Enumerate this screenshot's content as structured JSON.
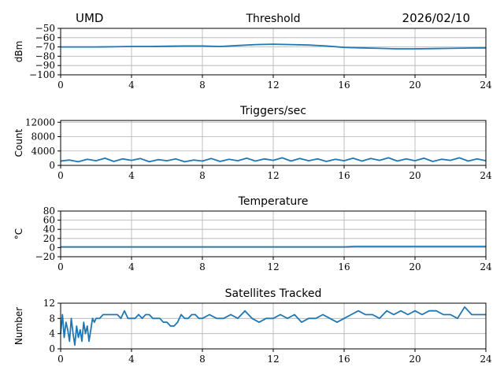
{
  "header": {
    "station": "UMD",
    "date": "2026/02/10"
  },
  "colors": {
    "series": "#1f77b4",
    "grid": "#b0b0b0",
    "axis": "#000000"
  },
  "chart_data": [
    {
      "id": "threshold",
      "type": "line",
      "title": "Threshold",
      "xlabel": "",
      "ylabel": "dBm",
      "xlim": [
        0,
        24
      ],
      "ylim": [
        -100,
        -50
      ],
      "xticks": [
        0,
        4,
        8,
        12,
        16,
        20,
        24
      ],
      "yticks": [
        -100,
        -90,
        -80,
        -70,
        -60,
        -50
      ],
      "ytick_labels": [
        "−100",
        "−90",
        "−80",
        "−70",
        "−60",
        "−50"
      ],
      "grid": true,
      "series": [
        {
          "x": [
            0,
            1,
            2,
            3,
            4,
            5,
            6,
            7,
            8,
            9,
            10,
            11,
            12,
            13,
            14,
            15,
            16,
            17,
            18,
            19,
            20,
            21,
            22,
            23,
            24
          ],
          "values": [
            -70,
            -70,
            -70,
            -69.8,
            -69.5,
            -69.5,
            -69.2,
            -69,
            -69,
            -69.5,
            -68.5,
            -67.5,
            -67,
            -67.5,
            -68,
            -69,
            -70.5,
            -71,
            -71.5,
            -72,
            -72,
            -71.8,
            -71.5,
            -71.2,
            -71
          ]
        }
      ]
    },
    {
      "id": "triggers",
      "type": "line",
      "title": "Triggers/sec",
      "xlabel": "",
      "ylabel": "Count",
      "xlim": [
        0,
        24
      ],
      "ylim": [
        0,
        12500
      ],
      "xticks": [
        0,
        4,
        8,
        12,
        16,
        20,
        24
      ],
      "yticks": [
        0,
        4000,
        8000,
        12000
      ],
      "ytick_labels": [
        "0",
        "4000",
        "8000",
        "12000"
      ],
      "grid": true,
      "series": [
        {
          "x": [
            0,
            0.5,
            1,
            1.5,
            2,
            2.5,
            3,
            3.5,
            4,
            4.5,
            5,
            5.5,
            6,
            6.5,
            7,
            7.5,
            8,
            8.5,
            9,
            9.5,
            10,
            10.5,
            11,
            11.5,
            12,
            12.5,
            13,
            13.5,
            14,
            14.5,
            15,
            15.5,
            16,
            16.5,
            17,
            17.5,
            18,
            18.5,
            19,
            19.5,
            20,
            20.5,
            21,
            21.5,
            22,
            22.5,
            23,
            23.5,
            24
          ],
          "values": [
            1200,
            1500,
            1000,
            1700,
            1300,
            2000,
            1100,
            1800,
            1400,
            1900,
            1000,
            1600,
            1300,
            1800,
            1000,
            1500,
            1200,
            1900,
            1100,
            1700,
            1300,
            2000,
            1200,
            1800,
            1400,
            2100,
            1200,
            1900,
            1300,
            1800,
            1100,
            1700,
            1300,
            2000,
            1200,
            1900,
            1400,
            2100,
            1200,
            1800,
            1300,
            2000,
            1100,
            1700,
            1400,
            2100,
            1200,
            1800,
            1300
          ]
        }
      ]
    },
    {
      "id": "temperature",
      "type": "line",
      "title": "Temperature",
      "xlabel": "",
      "ylabel": "°C",
      "xlim": [
        0,
        24
      ],
      "ylim": [
        -20,
        80
      ],
      "xticks": [
        0,
        4,
        8,
        12,
        16,
        20,
        24
      ],
      "yticks": [
        -20,
        0,
        20,
        40,
        60,
        80
      ],
      "ytick_labels": [
        "−20",
        "0",
        "20",
        "40",
        "60",
        "80"
      ],
      "grid": true,
      "series": [
        {
          "x": [
            0,
            4,
            8,
            12,
            16,
            16.6,
            20,
            24
          ],
          "values": [
            1.5,
            1.5,
            1.5,
            1.5,
            1.5,
            2.5,
            2.5,
            2.5
          ]
        }
      ]
    },
    {
      "id": "satellites",
      "type": "line",
      "title": "Satellites Tracked",
      "xlabel": "",
      "ylabel": "Number",
      "xlim": [
        0,
        24
      ],
      "ylim": [
        0,
        12
      ],
      "xticks": [
        0,
        4,
        8,
        12,
        16,
        20,
        24
      ],
      "yticks": [
        0,
        4,
        8,
        12
      ],
      "ytick_labels": [
        "0",
        "4",
        "8",
        "12"
      ],
      "grid": true,
      "series": [
        {
          "x": [
            0,
            0.1,
            0.2,
            0.3,
            0.4,
            0.5,
            0.6,
            0.7,
            0.8,
            0.9,
            1.0,
            1.1,
            1.2,
            1.3,
            1.4,
            1.5,
            1.6,
            1.7,
            1.8,
            1.9,
            2.0,
            2.2,
            2.4,
            2.6,
            2.8,
            3.0,
            3.2,
            3.4,
            3.6,
            3.8,
            4.0,
            4.2,
            4.4,
            4.6,
            4.8,
            5.0,
            5.2,
            5.4,
            5.6,
            5.8,
            6.0,
            6.2,
            6.4,
            6.6,
            6.8,
            7.0,
            7.2,
            7.4,
            7.6,
            7.8,
            8.0,
            8.4,
            8.8,
            9.2,
            9.6,
            10.0,
            10.4,
            10.8,
            11.2,
            11.6,
            12.0,
            12.4,
            12.8,
            13.2,
            13.6,
            14.0,
            14.4,
            14.8,
            15.2,
            15.6,
            16.0,
            16.4,
            16.8,
            17.2,
            17.6,
            18.0,
            18.4,
            18.8,
            19.2,
            19.6,
            20.0,
            20.4,
            20.8,
            21.2,
            21.6,
            22.0,
            22.4,
            22.8,
            23.2,
            23.6,
            24.0
          ],
          "values": [
            4,
            9,
            3,
            7,
            5,
            2,
            8,
            4,
            1,
            6,
            3,
            5,
            2,
            7,
            4,
            6,
            2,
            5,
            8,
            7,
            8,
            8,
            9,
            9,
            9,
            9,
            9,
            8,
            10,
            8,
            8,
            8,
            9,
            8,
            9,
            9,
            8,
            8,
            8,
            7,
            7,
            6,
            6,
            7,
            9,
            8,
            8,
            9,
            9,
            8,
            8,
            9,
            8,
            8,
            9,
            8,
            10,
            8,
            7,
            8,
            8,
            9,
            8,
            9,
            7,
            8,
            8,
            9,
            8,
            7,
            8,
            9,
            10,
            9,
            9,
            8,
            10,
            9,
            10,
            9,
            10,
            9,
            10,
            10,
            9,
            9,
            8,
            11,
            9,
            9,
            9
          ]
        }
      ]
    }
  ]
}
